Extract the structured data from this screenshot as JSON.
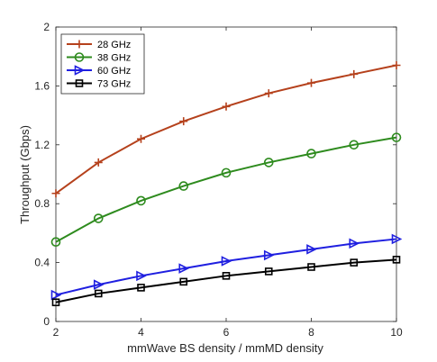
{
  "chart_data": {
    "type": "line",
    "title": "",
    "xlabel": "mmWave BS density / mmMD density",
    "ylabel": "Throughput (Gbps)",
    "xlim": [
      2,
      10
    ],
    "ylim": [
      0,
      2
    ],
    "xticks": [
      2,
      4,
      6,
      8,
      10
    ],
    "xtick_labels": [
      "2",
      "4",
      "6",
      "8",
      "10"
    ],
    "yticks": [
      0,
      0.4,
      0.8,
      1.2,
      1.6,
      2
    ],
    "ytick_labels": [
      "0",
      "0.4",
      "0.8",
      "1.2",
      "1.6",
      "2"
    ],
    "grid": false,
    "legend_position": "top-left",
    "x": [
      2,
      3,
      4,
      5,
      6,
      7,
      8,
      9,
      10
    ],
    "series": [
      {
        "name": "28 GHz",
        "color": "#b5411c",
        "marker": "plus",
        "values": [
          0.87,
          1.08,
          1.24,
          1.36,
          1.46,
          1.55,
          1.62,
          1.68,
          1.74
        ]
      },
      {
        "name": "38 GHz",
        "color": "#2e8b1e",
        "marker": "circle",
        "values": [
          0.54,
          0.7,
          0.82,
          0.92,
          1.01,
          1.08,
          1.14,
          1.2,
          1.25
        ]
      },
      {
        "name": "60 GHz",
        "color": "#1f1fe0",
        "marker": "triangle-right",
        "values": [
          0.18,
          0.25,
          0.31,
          0.36,
          0.41,
          0.45,
          0.49,
          0.53,
          0.56
        ]
      },
      {
        "name": "73 GHz",
        "color": "#000000",
        "marker": "square",
        "values": [
          0.13,
          0.19,
          0.23,
          0.27,
          0.31,
          0.34,
          0.37,
          0.4,
          0.42
        ]
      }
    ]
  }
}
